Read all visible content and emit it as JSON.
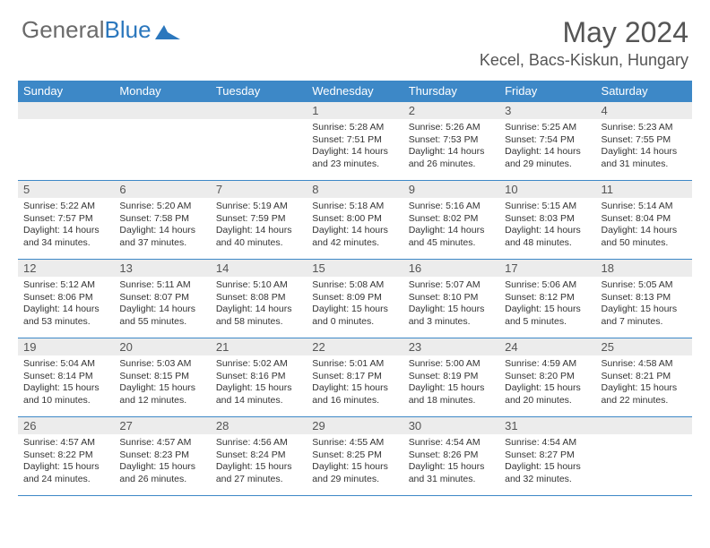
{
  "brand": {
    "part1": "General",
    "part2": "Blue"
  },
  "title": "May 2024",
  "location": "Kecel, Bacs-Kiskun, Hungary",
  "colors": {
    "header_bg": "#3d88c7",
    "header_text": "#ffffff",
    "daynum_bg": "#ececec",
    "border": "#3d88c7",
    "brand_gray": "#6a6a6a",
    "brand_blue": "#2b77bd"
  },
  "dayNames": [
    "Sunday",
    "Monday",
    "Tuesday",
    "Wednesday",
    "Thursday",
    "Friday",
    "Saturday"
  ],
  "weeks": [
    [
      {
        "n": "",
        "lines": []
      },
      {
        "n": "",
        "lines": []
      },
      {
        "n": "",
        "lines": []
      },
      {
        "n": "1",
        "lines": [
          "Sunrise: 5:28 AM",
          "Sunset: 7:51 PM",
          "Daylight: 14 hours",
          "and 23 minutes."
        ]
      },
      {
        "n": "2",
        "lines": [
          "Sunrise: 5:26 AM",
          "Sunset: 7:53 PM",
          "Daylight: 14 hours",
          "and 26 minutes."
        ]
      },
      {
        "n": "3",
        "lines": [
          "Sunrise: 5:25 AM",
          "Sunset: 7:54 PM",
          "Daylight: 14 hours",
          "and 29 minutes."
        ]
      },
      {
        "n": "4",
        "lines": [
          "Sunrise: 5:23 AM",
          "Sunset: 7:55 PM",
          "Daylight: 14 hours",
          "and 31 minutes."
        ]
      }
    ],
    [
      {
        "n": "5",
        "lines": [
          "Sunrise: 5:22 AM",
          "Sunset: 7:57 PM",
          "Daylight: 14 hours",
          "and 34 minutes."
        ]
      },
      {
        "n": "6",
        "lines": [
          "Sunrise: 5:20 AM",
          "Sunset: 7:58 PM",
          "Daylight: 14 hours",
          "and 37 minutes."
        ]
      },
      {
        "n": "7",
        "lines": [
          "Sunrise: 5:19 AM",
          "Sunset: 7:59 PM",
          "Daylight: 14 hours",
          "and 40 minutes."
        ]
      },
      {
        "n": "8",
        "lines": [
          "Sunrise: 5:18 AM",
          "Sunset: 8:00 PM",
          "Daylight: 14 hours",
          "and 42 minutes."
        ]
      },
      {
        "n": "9",
        "lines": [
          "Sunrise: 5:16 AM",
          "Sunset: 8:02 PM",
          "Daylight: 14 hours",
          "and 45 minutes."
        ]
      },
      {
        "n": "10",
        "lines": [
          "Sunrise: 5:15 AM",
          "Sunset: 8:03 PM",
          "Daylight: 14 hours",
          "and 48 minutes."
        ]
      },
      {
        "n": "11",
        "lines": [
          "Sunrise: 5:14 AM",
          "Sunset: 8:04 PM",
          "Daylight: 14 hours",
          "and 50 minutes."
        ]
      }
    ],
    [
      {
        "n": "12",
        "lines": [
          "Sunrise: 5:12 AM",
          "Sunset: 8:06 PM",
          "Daylight: 14 hours",
          "and 53 minutes."
        ]
      },
      {
        "n": "13",
        "lines": [
          "Sunrise: 5:11 AM",
          "Sunset: 8:07 PM",
          "Daylight: 14 hours",
          "and 55 minutes."
        ]
      },
      {
        "n": "14",
        "lines": [
          "Sunrise: 5:10 AM",
          "Sunset: 8:08 PM",
          "Daylight: 14 hours",
          "and 58 minutes."
        ]
      },
      {
        "n": "15",
        "lines": [
          "Sunrise: 5:08 AM",
          "Sunset: 8:09 PM",
          "Daylight: 15 hours",
          "and 0 minutes."
        ]
      },
      {
        "n": "16",
        "lines": [
          "Sunrise: 5:07 AM",
          "Sunset: 8:10 PM",
          "Daylight: 15 hours",
          "and 3 minutes."
        ]
      },
      {
        "n": "17",
        "lines": [
          "Sunrise: 5:06 AM",
          "Sunset: 8:12 PM",
          "Daylight: 15 hours",
          "and 5 minutes."
        ]
      },
      {
        "n": "18",
        "lines": [
          "Sunrise: 5:05 AM",
          "Sunset: 8:13 PM",
          "Daylight: 15 hours",
          "and 7 minutes."
        ]
      }
    ],
    [
      {
        "n": "19",
        "lines": [
          "Sunrise: 5:04 AM",
          "Sunset: 8:14 PM",
          "Daylight: 15 hours",
          "and 10 minutes."
        ]
      },
      {
        "n": "20",
        "lines": [
          "Sunrise: 5:03 AM",
          "Sunset: 8:15 PM",
          "Daylight: 15 hours",
          "and 12 minutes."
        ]
      },
      {
        "n": "21",
        "lines": [
          "Sunrise: 5:02 AM",
          "Sunset: 8:16 PM",
          "Daylight: 15 hours",
          "and 14 minutes."
        ]
      },
      {
        "n": "22",
        "lines": [
          "Sunrise: 5:01 AM",
          "Sunset: 8:17 PM",
          "Daylight: 15 hours",
          "and 16 minutes."
        ]
      },
      {
        "n": "23",
        "lines": [
          "Sunrise: 5:00 AM",
          "Sunset: 8:19 PM",
          "Daylight: 15 hours",
          "and 18 minutes."
        ]
      },
      {
        "n": "24",
        "lines": [
          "Sunrise: 4:59 AM",
          "Sunset: 8:20 PM",
          "Daylight: 15 hours",
          "and 20 minutes."
        ]
      },
      {
        "n": "25",
        "lines": [
          "Sunrise: 4:58 AM",
          "Sunset: 8:21 PM",
          "Daylight: 15 hours",
          "and 22 minutes."
        ]
      }
    ],
    [
      {
        "n": "26",
        "lines": [
          "Sunrise: 4:57 AM",
          "Sunset: 8:22 PM",
          "Daylight: 15 hours",
          "and 24 minutes."
        ]
      },
      {
        "n": "27",
        "lines": [
          "Sunrise: 4:57 AM",
          "Sunset: 8:23 PM",
          "Daylight: 15 hours",
          "and 26 minutes."
        ]
      },
      {
        "n": "28",
        "lines": [
          "Sunrise: 4:56 AM",
          "Sunset: 8:24 PM",
          "Daylight: 15 hours",
          "and 27 minutes."
        ]
      },
      {
        "n": "29",
        "lines": [
          "Sunrise: 4:55 AM",
          "Sunset: 8:25 PM",
          "Daylight: 15 hours",
          "and 29 minutes."
        ]
      },
      {
        "n": "30",
        "lines": [
          "Sunrise: 4:54 AM",
          "Sunset: 8:26 PM",
          "Daylight: 15 hours",
          "and 31 minutes."
        ]
      },
      {
        "n": "31",
        "lines": [
          "Sunrise: 4:54 AM",
          "Sunset: 8:27 PM",
          "Daylight: 15 hours",
          "and 32 minutes."
        ]
      },
      {
        "n": "",
        "lines": []
      }
    ]
  ]
}
